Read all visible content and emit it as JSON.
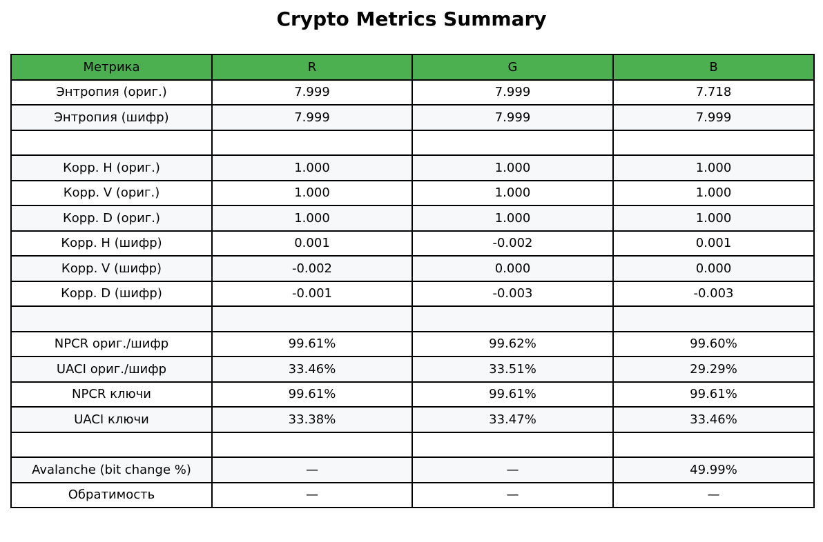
{
  "chart_data": {
    "type": "table",
    "title": "Crypto Metrics Summary",
    "columns": [
      "Метрика",
      "R",
      "G",
      "B"
    ],
    "rows": [
      [
        "Энтропия (ориг.)",
        "7.999",
        "7.999",
        "7.718"
      ],
      [
        "Энтропия (шифр)",
        "7.999",
        "7.999",
        "7.999"
      ],
      [
        "",
        "",
        "",
        ""
      ],
      [
        "Корр. H (ориг.)",
        "1.000",
        "1.000",
        "1.000"
      ],
      [
        "Корр. V (ориг.)",
        "1.000",
        "1.000",
        "1.000"
      ],
      [
        "Корр. D (ориг.)",
        "1.000",
        "1.000",
        "1.000"
      ],
      [
        "Корр. H (шифр)",
        "0.001",
        "-0.002",
        "0.001"
      ],
      [
        "Корр. V (шифр)",
        "-0.002",
        "0.000",
        "0.000"
      ],
      [
        "Корр. D (шифр)",
        "-0.001",
        "-0.003",
        "-0.003"
      ],
      [
        "",
        "",
        "",
        ""
      ],
      [
        "NPCR ориг./шифр",
        "99.61%",
        "99.62%",
        "99.60%"
      ],
      [
        "UACI ориг./шифр",
        "33.46%",
        "33.51%",
        "29.29%"
      ],
      [
        "NPCR ключи",
        "99.61%",
        "99.61%",
        "99.61%"
      ],
      [
        "UACI ключи",
        "33.38%",
        "33.47%",
        "33.46%"
      ],
      [
        "",
        "",
        "",
        ""
      ],
      [
        "Avalanche (bit change %)",
        "—",
        "—",
        "49.99%"
      ],
      [
        "Обратимость",
        "—",
        "—",
        "—"
      ]
    ],
    "header_color": "#4caf50",
    "row_colors": [
      "#ffffff",
      "#f7f8fa"
    ],
    "border_color": "#000000"
  }
}
